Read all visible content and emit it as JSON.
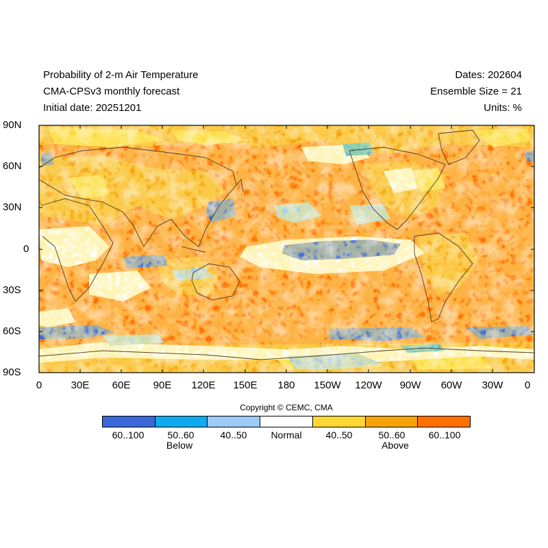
{
  "header": {
    "title": "Probability of 2-m Air Temperature",
    "model": "CMA-CPSv3 monthly forecast",
    "initial": "Initial date: 20251201",
    "dates": "Dates: 202604",
    "ensemble": "Ensemble Size = 21",
    "units": "Units: %"
  },
  "axes": {
    "lat_labels": [
      "90N",
      "60N",
      "30N",
      "0",
      "30S",
      "60S",
      "90S"
    ],
    "lon_labels": [
      "0",
      "30E",
      "60E",
      "90E",
      "120E",
      "150E",
      "180",
      "150W",
      "120W",
      "90W",
      "60W",
      "30W",
      "0"
    ]
  },
  "copyright": "Copyright © CEMC, CMA",
  "legend": {
    "categories": [
      "60..100",
      "50..60",
      "40..50",
      "Normal",
      "40..50",
      "50..60",
      "60..100"
    ],
    "colors": [
      "#3a68d8",
      "#10aaee",
      "#9ccbf7",
      "#ffffff",
      "#fdd835",
      "#f8a20a",
      "#ff6f00"
    ],
    "below_label": "Below",
    "above_label": "Above"
  },
  "colors": {
    "frame": "#000000",
    "continent_outline": "#4a3a2a"
  }
}
